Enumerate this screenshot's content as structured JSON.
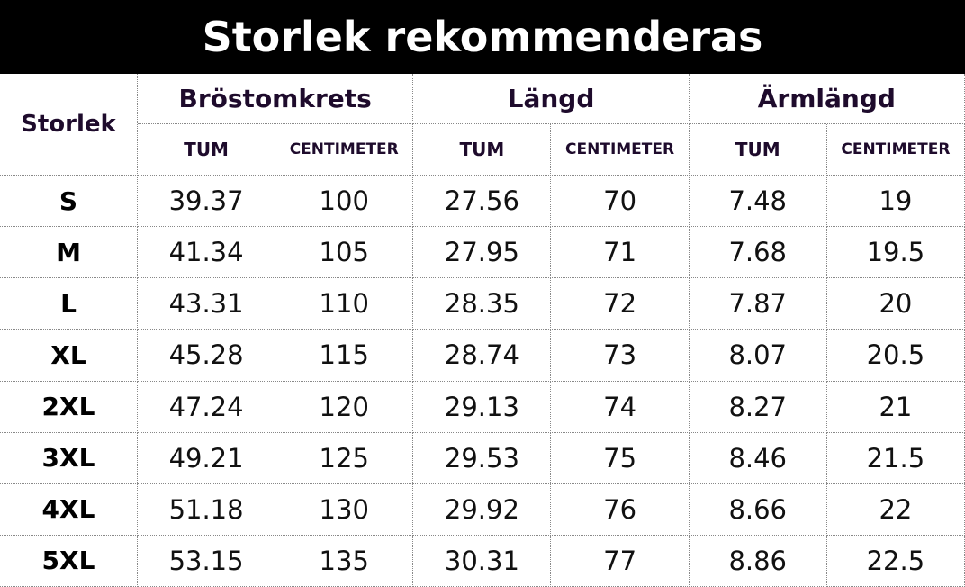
{
  "title": "Storlek rekommenderas",
  "table": {
    "size_header": "Storlek",
    "groups": [
      {
        "label": "Bröstomkrets",
        "subheaders": [
          "TUM",
          "CENTIMETER"
        ]
      },
      {
        "label": "Längd",
        "subheaders": [
          "TUM",
          "CENTIMETER"
        ]
      },
      {
        "label": "Ärmlängd",
        "subheaders": [
          "TUM",
          "CENTIMETER"
        ]
      }
    ],
    "rows": [
      [
        "S",
        "39.37",
        "100",
        "27.56",
        "70",
        "7.48",
        "19"
      ],
      [
        "M",
        "41.34",
        "105",
        "27.95",
        "71",
        "7.68",
        "19.5"
      ],
      [
        "L",
        "43.31",
        "110",
        "28.35",
        "72",
        "7.87",
        "20"
      ],
      [
        "XL",
        "45.28",
        "115",
        "28.74",
        "73",
        "8.07",
        "20.5"
      ],
      [
        "2XL",
        "47.24",
        "120",
        "29.13",
        "74",
        "8.27",
        "21"
      ],
      [
        "3XL",
        "49.21",
        "125",
        "29.53",
        "75",
        "8.46",
        "21.5"
      ],
      [
        "4XL",
        "51.18",
        "130",
        "29.92",
        "76",
        "8.66",
        "22"
      ],
      [
        "5XL",
        "53.15",
        "135",
        "30.31",
        "77",
        "8.86",
        "22.5"
      ]
    ]
  }
}
